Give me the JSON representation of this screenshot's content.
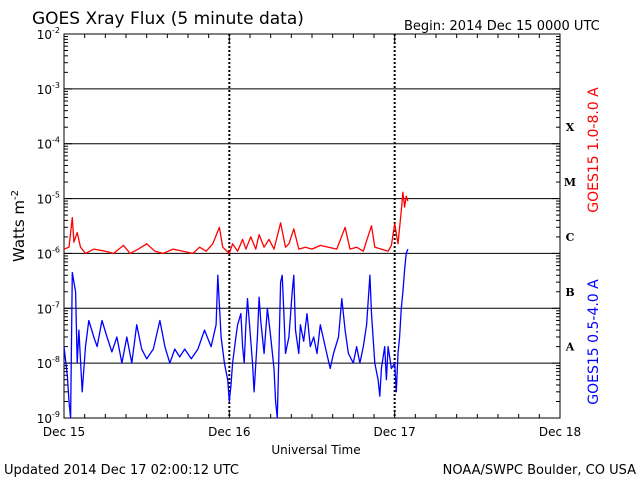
{
  "title": "GOES Xray Flux (5 minute data)",
  "begin": "Begin:  2014 Dec 15 0000 UTC",
  "updated": "Updated 2014 Dec 17 02:00:12 UTC",
  "credit": "NOAA/SWPC Boulder, CO USA",
  "chart_data": {
    "type": "line",
    "title": "GOES Xray Flux (5 minute data)",
    "xlabel": "Universal Time",
    "ylabel_base": "Watts m",
    "ylabel_exp": "-2",
    "y_scale": "log",
    "ylim": [
      1e-09,
      0.01
    ],
    "xlim_days": [
      0,
      3
    ],
    "grid": true,
    "x_tick_labels": [
      "Dec 15",
      "Dec 16",
      "Dec 17",
      "Dec 18"
    ],
    "y_tick_exponents": [
      "-2",
      "-3",
      "-4",
      "-5",
      "-6",
      "-7",
      "-8",
      "-9"
    ],
    "flare_classes": [
      {
        "label": "X",
        "flux": 0.0002
      },
      {
        "label": "M",
        "flux": 2e-05
      },
      {
        "label": "C",
        "flux": 2e-06
      },
      {
        "label": "B",
        "flux": 2e-07
      },
      {
        "label": "A",
        "flux": 2e-08
      }
    ],
    "series": [
      {
        "name": "GOES15 1.0-8.0 A",
        "color": "#ff0000",
        "points": [
          [
            0.0,
            1.2e-06
          ],
          [
            0.03,
            1.3e-06
          ],
          [
            0.05,
            4.5e-06
          ],
          [
            0.06,
            1.6e-06
          ],
          [
            0.08,
            2.4e-06
          ],
          [
            0.1,
            1.3e-06
          ],
          [
            0.13,
            1e-06
          ],
          [
            0.18,
            1.2e-06
          ],
          [
            0.25,
            1.1e-06
          ],
          [
            0.3,
            1e-06
          ],
          [
            0.36,
            1.4e-06
          ],
          [
            0.4,
            1e-06
          ],
          [
            0.45,
            1.2e-06
          ],
          [
            0.5,
            1.5e-06
          ],
          [
            0.55,
            1.1e-06
          ],
          [
            0.6,
            1e-06
          ],
          [
            0.66,
            1.2e-06
          ],
          [
            0.72,
            1.1e-06
          ],
          [
            0.78,
            1e-06
          ],
          [
            0.82,
            1.3e-06
          ],
          [
            0.86,
            1.1e-06
          ],
          [
            0.9,
            1.5e-06
          ],
          [
            0.94,
            3e-06
          ],
          [
            0.96,
            1.3e-06
          ],
          [
            1.0,
            1e-06
          ],
          [
            1.02,
            1.5e-06
          ],
          [
            1.05,
            1.1e-06
          ],
          [
            1.08,
            1.8e-06
          ],
          [
            1.1,
            1.2e-06
          ],
          [
            1.13,
            2e-06
          ],
          [
            1.16,
            1.2e-06
          ],
          [
            1.18,
            2.2e-06
          ],
          [
            1.21,
            1.3e-06
          ],
          [
            1.24,
            1.8e-06
          ],
          [
            1.27,
            1.2e-06
          ],
          [
            1.31,
            3.6e-06
          ],
          [
            1.34,
            1.3e-06
          ],
          [
            1.36,
            1.5e-06
          ],
          [
            1.39,
            2.8e-06
          ],
          [
            1.42,
            1.2e-06
          ],
          [
            1.46,
            1.3e-06
          ],
          [
            1.5,
            1.2e-06
          ],
          [
            1.55,
            1.4e-06
          ],
          [
            1.6,
            1.3e-06
          ],
          [
            1.65,
            1.2e-06
          ],
          [
            1.7,
            3e-06
          ],
          [
            1.73,
            1.2e-06
          ],
          [
            1.77,
            1.3e-06
          ],
          [
            1.81,
            1.1e-06
          ],
          [
            1.86,
            3.2e-06
          ],
          [
            1.88,
            1.3e-06
          ],
          [
            1.92,
            1.2e-06
          ],
          [
            1.96,
            1.1e-06
          ],
          [
            1.98,
            1.4e-06
          ],
          [
            2.0,
            3.5e-06
          ],
          [
            2.02,
            1.5e-06
          ],
          [
            2.04,
            6e-06
          ],
          [
            2.05,
            1.3e-05
          ],
          [
            2.06,
            7e-06
          ],
          [
            2.07,
            1.1e-05
          ],
          [
            2.08,
            9e-06
          ]
        ]
      },
      {
        "name": "GOES15 0.5-4.0 A",
        "color": "#0000ff",
        "points": [
          [
            0.0,
            2e-08
          ],
          [
            0.02,
            6e-09
          ],
          [
            0.03,
            2e-09
          ],
          [
            0.04,
            1e-09
          ],
          [
            0.05,
            4.5e-07
          ],
          [
            0.06,
            3e-07
          ],
          [
            0.07,
            2e-07
          ],
          [
            0.08,
            1e-08
          ],
          [
            0.09,
            4e-08
          ],
          [
            0.11,
            3e-09
          ],
          [
            0.13,
            2e-08
          ],
          [
            0.15,
            6e-08
          ],
          [
            0.18,
            3e-08
          ],
          [
            0.2,
            2e-08
          ],
          [
            0.23,
            6e-08
          ],
          [
            0.26,
            3e-08
          ],
          [
            0.29,
            1.6e-08
          ],
          [
            0.32,
            3e-08
          ],
          [
            0.35,
            1e-08
          ],
          [
            0.38,
            3e-08
          ],
          [
            0.41,
            1e-08
          ],
          [
            0.44,
            5e-08
          ],
          [
            0.47,
            1.8e-08
          ],
          [
            0.5,
            1.2e-08
          ],
          [
            0.54,
            1.8e-08
          ],
          [
            0.58,
            6e-08
          ],
          [
            0.61,
            2e-08
          ],
          [
            0.64,
            1e-08
          ],
          [
            0.67,
            1.8e-08
          ],
          [
            0.7,
            1.3e-08
          ],
          [
            0.73,
            1.8e-08
          ],
          [
            0.77,
            1.2e-08
          ],
          [
            0.81,
            1.8e-08
          ],
          [
            0.85,
            4e-08
          ],
          [
            0.89,
            2e-08
          ],
          [
            0.92,
            5e-08
          ],
          [
            0.93,
            4e-07
          ],
          [
            0.95,
            3e-08
          ],
          [
            0.97,
            1e-08
          ],
          [
            0.99,
            5e-09
          ],
          [
            1.0,
            2e-09
          ],
          [
            1.01,
            4e-09
          ],
          [
            1.02,
            1e-08
          ],
          [
            1.04,
            3e-08
          ],
          [
            1.05,
            5e-08
          ],
          [
            1.07,
            8e-08
          ],
          [
            1.08,
            2e-08
          ],
          [
            1.09,
            1e-08
          ],
          [
            1.1,
            5e-08
          ],
          [
            1.11,
            1.5e-07
          ],
          [
            1.12,
            6e-08
          ],
          [
            1.14,
            1e-08
          ],
          [
            1.15,
            3e-09
          ],
          [
            1.17,
            3e-08
          ],
          [
            1.18,
            1.6e-07
          ],
          [
            1.19,
            6e-08
          ],
          [
            1.21,
            1.5e-08
          ],
          [
            1.23,
            1e-07
          ],
          [
            1.25,
            3e-08
          ],
          [
            1.27,
            8e-09
          ],
          [
            1.28,
            2e-09
          ],
          [
            1.29,
            1e-09
          ],
          [
            1.3,
            1.5e-08
          ],
          [
            1.31,
            3e-07
          ],
          [
            1.32,
            4e-07
          ],
          [
            1.33,
            8e-08
          ],
          [
            1.34,
            1.5e-08
          ],
          [
            1.36,
            3e-08
          ],
          [
            1.38,
            2e-07
          ],
          [
            1.39,
            4e-07
          ],
          [
            1.4,
            4e-08
          ],
          [
            1.42,
            1.5e-08
          ],
          [
            1.43,
            5e-08
          ],
          [
            1.45,
            2.5e-08
          ],
          [
            1.47,
            8e-08
          ],
          [
            1.49,
            2e-08
          ],
          [
            1.51,
            3e-08
          ],
          [
            1.53,
            1.5e-08
          ],
          [
            1.55,
            5e-08
          ],
          [
            1.58,
            2e-08
          ],
          [
            1.61,
            8e-09
          ],
          [
            1.63,
            1.5e-08
          ],
          [
            1.66,
            3e-08
          ],
          [
            1.68,
            1.5e-07
          ],
          [
            1.7,
            4e-08
          ],
          [
            1.72,
            1.5e-08
          ],
          [
            1.75,
            1e-08
          ],
          [
            1.77,
            2e-08
          ],
          [
            1.79,
            1e-08
          ],
          [
            1.81,
            2e-08
          ],
          [
            1.83,
            5e-08
          ],
          [
            1.85,
            4e-07
          ],
          [
            1.86,
            8e-08
          ],
          [
            1.88,
            1e-08
          ],
          [
            1.9,
            5e-09
          ],
          [
            1.91,
            2.5e-09
          ],
          [
            1.92,
            8e-09
          ],
          [
            1.94,
            2e-08
          ],
          [
            1.95,
            5e-09
          ],
          [
            1.96,
            2e-08
          ],
          [
            1.98,
            8e-09
          ],
          [
            2.0,
            1e-08
          ],
          [
            2.01,
            3e-09
          ],
          [
            2.02,
            1.5e-08
          ],
          [
            2.03,
            3e-08
          ],
          [
            2.04,
            1e-07
          ],
          [
            2.05,
            2e-07
          ],
          [
            2.06,
            5e-07
          ],
          [
            2.07,
            1e-06
          ],
          [
            2.08,
            1.2e-06
          ]
        ]
      }
    ]
  }
}
